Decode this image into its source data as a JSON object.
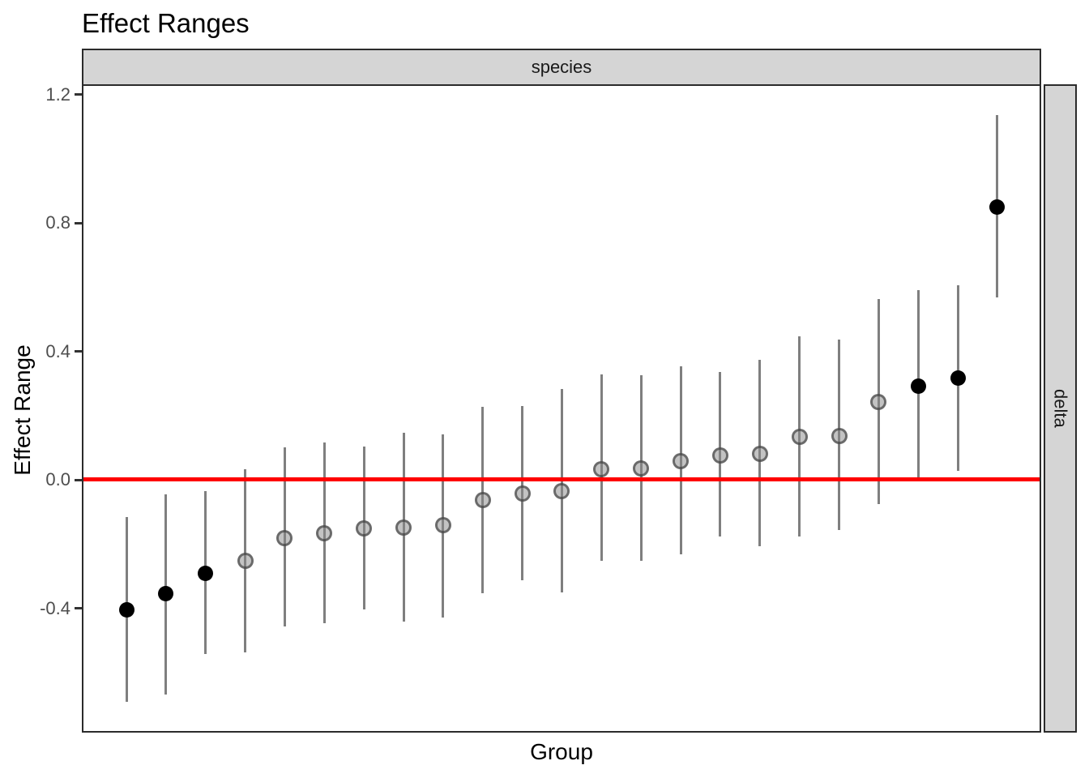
{
  "title": "Effect Ranges",
  "facets": {
    "top": "species",
    "right": "delta"
  },
  "axes": {
    "y": {
      "label": "Effect Range",
      "ticks": [
        {
          "value": 1.2,
          "label": "1.2"
        },
        {
          "value": 0.8,
          "label": "0.8"
        },
        {
          "value": 0.4,
          "label": "0.4"
        },
        {
          "value": 0.0,
          "label": "0.0"
        },
        {
          "value": -0.4,
          "label": "-0.4"
        }
      ],
      "range": [
        -0.79,
        1.23
      ]
    },
    "x": {
      "label": "Group",
      "ticks": []
    }
  },
  "reference_line": {
    "y": 0.0
  },
  "colors": {
    "reference_line": "#FF0000",
    "error_bar": "#7f7f7f",
    "point_significant": "#000000",
    "point_nonsignificant": "#808080",
    "strip_fill": "#d5d5d5",
    "panel_border": "#2b2b2b",
    "tick_label": "#4d4d4d"
  },
  "chart_data": {
    "type": "scatter",
    "title": "Effect Ranges",
    "xlabel": "Group",
    "ylabel": "Effect Range",
    "facet_col": "species",
    "facet_row": "delta",
    "ylim": [
      -0.79,
      1.23
    ],
    "reference_line_y": 0.0,
    "grid": false,
    "legend": false,
    "n_groups": 23,
    "points": [
      {
        "group": 1,
        "estimate": -0.407,
        "lo": -0.695,
        "hi": -0.119,
        "significant": true
      },
      {
        "group": 2,
        "estimate": -0.356,
        "lo": -0.672,
        "hi": -0.047,
        "significant": true
      },
      {
        "group": 3,
        "estimate": -0.293,
        "lo": -0.546,
        "hi": -0.037,
        "significant": true
      },
      {
        "group": 4,
        "estimate": -0.255,
        "lo": -0.54,
        "hi": 0.03,
        "significant": false
      },
      {
        "group": 5,
        "estimate": -0.183,
        "lo": -0.46,
        "hi": 0.098,
        "significant": false
      },
      {
        "group": 6,
        "estimate": -0.17,
        "lo": -0.449,
        "hi": 0.113,
        "significant": false
      },
      {
        "group": 7,
        "estimate": -0.155,
        "lo": -0.406,
        "hi": 0.1,
        "significant": false
      },
      {
        "group": 8,
        "estimate": -0.151,
        "lo": -0.445,
        "hi": 0.144,
        "significant": false
      },
      {
        "group": 9,
        "estimate": -0.144,
        "lo": -0.432,
        "hi": 0.14,
        "significant": false
      },
      {
        "group": 10,
        "estimate": -0.065,
        "lo": -0.357,
        "hi": 0.224,
        "significant": false
      },
      {
        "group": 11,
        "estimate": -0.045,
        "lo": -0.315,
        "hi": 0.227,
        "significant": false
      },
      {
        "group": 12,
        "estimate": -0.037,
        "lo": -0.353,
        "hi": 0.279,
        "significant": false
      },
      {
        "group": 13,
        "estimate": 0.03,
        "lo": -0.256,
        "hi": 0.326,
        "significant": false
      },
      {
        "group": 14,
        "estimate": 0.032,
        "lo": -0.254,
        "hi": 0.322,
        "significant": false
      },
      {
        "group": 15,
        "estimate": 0.056,
        "lo": -0.235,
        "hi": 0.352,
        "significant": false
      },
      {
        "group": 16,
        "estimate": 0.072,
        "lo": -0.18,
        "hi": 0.332,
        "significant": false
      },
      {
        "group": 17,
        "estimate": 0.079,
        "lo": -0.21,
        "hi": 0.371,
        "significant": false
      },
      {
        "group": 18,
        "estimate": 0.131,
        "lo": -0.179,
        "hi": 0.443,
        "significant": false
      },
      {
        "group": 19,
        "estimate": 0.133,
        "lo": -0.159,
        "hi": 0.434,
        "significant": false
      },
      {
        "group": 20,
        "estimate": 0.241,
        "lo": -0.079,
        "hi": 0.561,
        "significant": false
      },
      {
        "group": 21,
        "estimate": 0.29,
        "lo": 0.002,
        "hi": 0.588,
        "significant": true
      },
      {
        "group": 22,
        "estimate": 0.314,
        "lo": 0.026,
        "hi": 0.603,
        "significant": true
      },
      {
        "group": 23,
        "estimate": 0.847,
        "lo": 0.565,
        "hi": 1.134,
        "significant": true
      }
    ]
  }
}
